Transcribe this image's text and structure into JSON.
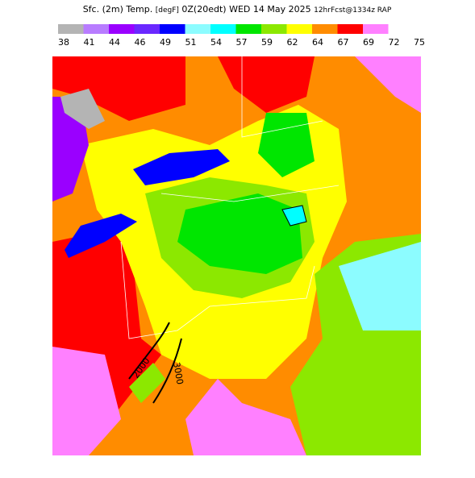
{
  "header": {
    "field": "Sfc. (2m) Temp.",
    "units": "[degF]",
    "valid": "0Z(20edt)",
    "date": "WED 14 May 2025",
    "forecast": "12hrFcst@1334z RAP"
  },
  "legend": {
    "labels": [
      38,
      41,
      44,
      46,
      49,
      51,
      54,
      57,
      59,
      62,
      64,
      67,
      69,
      72,
      75
    ],
    "colors": [
      "#b4b4b4",
      "#b87cff",
      "#9a00ff",
      "#6a28ff",
      "#0000ff",
      "#8cfcff",
      "#00ffff",
      "#00e600",
      "#8ce800",
      "#ffff00",
      "#ff8c00",
      "#ff0000",
      "#ff80ff"
    ]
  },
  "map": {
    "contour_labels": [
      "2000",
      "3000"
    ]
  }
}
